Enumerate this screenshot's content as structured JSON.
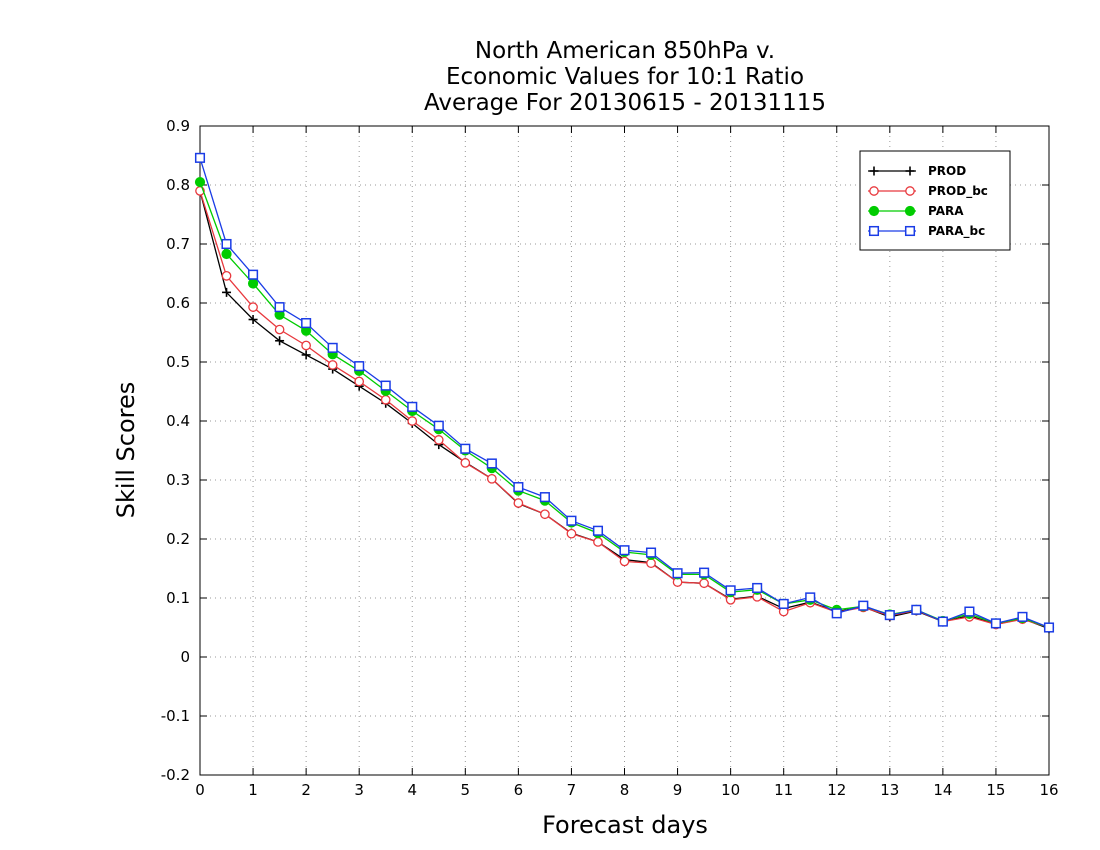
{
  "chart_data": {
    "type": "line",
    "title": [
      "North American 850hPa v.",
      "Economic Values for 10:1 Ratio",
      "Average For 20130615 - 20131115"
    ],
    "xlabel": "Forecast days",
    "ylabel": "Skill Scores",
    "xlim": [
      0,
      16
    ],
    "ylim": [
      -0.2,
      0.9
    ],
    "x_ticks": [
      "0",
      "1",
      "2",
      "3",
      "4",
      "5",
      "6",
      "7",
      "8",
      "9",
      "10",
      "11",
      "12",
      "13",
      "14",
      "15",
      "16"
    ],
    "y_ticks": [
      "-0.2",
      "-0.1",
      "0",
      "0.1",
      "0.2",
      "0.3",
      "0.4",
      "0.5",
      "0.6",
      "0.7",
      "0.8",
      "0.9"
    ],
    "grid": true,
    "legend_position": "top-right",
    "x": [
      0,
      0.5,
      1,
      1.5,
      2,
      2.5,
      3,
      3.5,
      4,
      4.5,
      5,
      5.5,
      6,
      6.5,
      7,
      7.5,
      8,
      8.5,
      9,
      9.5,
      10,
      10.5,
      11,
      11.5,
      12,
      12.5,
      13,
      13.5,
      14,
      14.5,
      15,
      15.5,
      16
    ],
    "series": [
      {
        "name": "PROD",
        "color": "#000000",
        "marker": "plus",
        "values": [
          0.79,
          0.618,
          0.572,
          0.536,
          0.512,
          0.488,
          0.459,
          0.43,
          0.396,
          0.36,
          0.33,
          0.302,
          0.26,
          0.242,
          0.21,
          0.195,
          0.165,
          0.16,
          0.127,
          0.125,
          0.098,
          0.103,
          0.082,
          0.093,
          0.077,
          0.085,
          0.068,
          0.078,
          0.06,
          0.07,
          0.055,
          0.065,
          0.048
        ]
      },
      {
        "name": "PROD_bc",
        "color": "#e8383d",
        "marker": "open-circle",
        "values": [
          0.79,
          0.646,
          0.593,
          0.555,
          0.528,
          0.495,
          0.467,
          0.436,
          0.4,
          0.368,
          0.329,
          0.302,
          0.261,
          0.242,
          0.209,
          0.195,
          0.162,
          0.159,
          0.127,
          0.125,
          0.097,
          0.102,
          0.077,
          0.092,
          0.076,
          0.084,
          0.07,
          0.079,
          0.06,
          0.068,
          0.055,
          0.064,
          0.05
        ]
      },
      {
        "name": "PARA",
        "color": "#00cc00",
        "marker": "filled-circle",
        "values": [
          0.805,
          0.683,
          0.633,
          0.58,
          0.553,
          0.513,
          0.485,
          0.451,
          0.417,
          0.386,
          0.35,
          0.32,
          0.282,
          0.265,
          0.228,
          0.21,
          0.178,
          0.173,
          0.14,
          0.14,
          0.11,
          0.114,
          0.09,
          0.097,
          0.08,
          0.086,
          0.072,
          0.08,
          0.061,
          0.073,
          0.057,
          0.066,
          0.05
        ]
      },
      {
        "name": "PARA_bc",
        "color": "#1a3ce6",
        "marker": "open-square",
        "values": [
          0.846,
          0.7,
          0.648,
          0.593,
          0.566,
          0.524,
          0.493,
          0.46,
          0.424,
          0.392,
          0.353,
          0.328,
          0.288,
          0.271,
          0.231,
          0.214,
          0.181,
          0.177,
          0.142,
          0.143,
          0.113,
          0.117,
          0.09,
          0.101,
          0.074,
          0.087,
          0.071,
          0.08,
          0.06,
          0.077,
          0.057,
          0.068,
          0.05
        ]
      }
    ]
  }
}
